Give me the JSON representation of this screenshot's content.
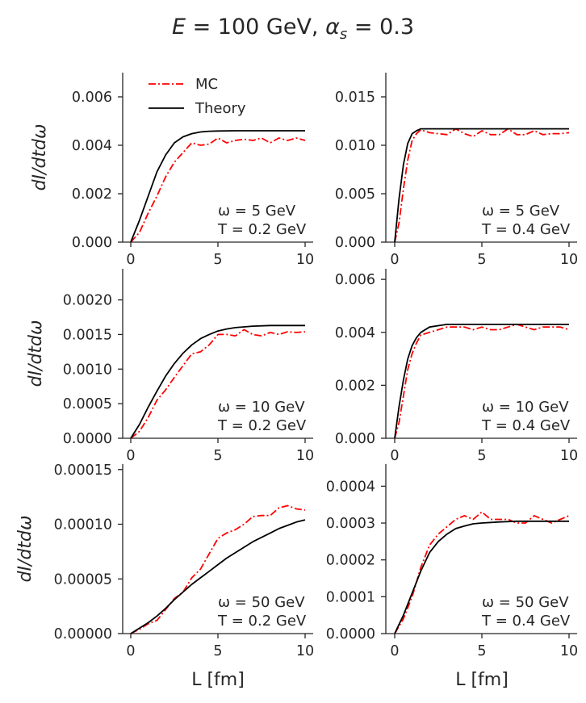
{
  "figure": {
    "title_prefix": "E",
    "title_mid": " = 100 GeV, ",
    "title_alpha": "α",
    "title_sub": "s",
    "title_suffix": " = 0.3"
  },
  "legend": {
    "mc": "MC",
    "theory": "Theory"
  },
  "colors": {
    "mc": "#ff0000",
    "theory": "#000000"
  },
  "chart_data": [
    {
      "type": "line",
      "ylabel": "dI/dtdω",
      "xlabel": "",
      "annotation": [
        "ω = 5 GeV",
        "T = 0.2 GeV"
      ],
      "xlim": [
        0,
        10
      ],
      "ylim": [
        0,
        0.007
      ],
      "xticks": [
        "0",
        "5",
        "10"
      ],
      "yticks": [
        "0.000",
        "0.002",
        "0.004",
        "0.006"
      ],
      "ytick_values": [
        0,
        0.002,
        0.004,
        0.006
      ],
      "series": [
        {
          "name": "MC",
          "style": "dashdot",
          "x": [
            0,
            0.5,
            1,
            1.5,
            2,
            2.5,
            3,
            3.5,
            4,
            4.5,
            5,
            5.5,
            6,
            6.5,
            7,
            7.5,
            8,
            8.5,
            9,
            9.5,
            10
          ],
          "y": [
            0,
            0.0004,
            0.0012,
            0.0019,
            0.0027,
            0.0033,
            0.0037,
            0.0041,
            0.004,
            0.00405,
            0.0043,
            0.0041,
            0.0042,
            0.00425,
            0.0042,
            0.0043,
            0.0041,
            0.0043,
            0.0042,
            0.0043,
            0.0042
          ]
        },
        {
          "name": "Theory",
          "style": "solid",
          "x": [
            0,
            0.5,
            1,
            1.5,
            2,
            2.5,
            3,
            3.5,
            4,
            4.5,
            5,
            6,
            7,
            8,
            9,
            10
          ],
          "y": [
            0,
            0.0009,
            0.0019,
            0.0029,
            0.0036,
            0.0041,
            0.00435,
            0.00448,
            0.00455,
            0.00458,
            0.00459,
            0.0046,
            0.0046,
            0.0046,
            0.0046,
            0.0046
          ]
        }
      ]
    },
    {
      "type": "line",
      "ylabel": "",
      "xlabel": "",
      "annotation": [
        "ω = 5 GeV",
        "T = 0.4 GeV"
      ],
      "xlim": [
        0,
        10
      ],
      "ylim": [
        0,
        0.0175
      ],
      "xticks": [
        "0",
        "5",
        "10"
      ],
      "yticks": [
        "0.000",
        "0.005",
        "0.010",
        "0.015"
      ],
      "ytick_values": [
        0,
        0.005,
        0.01,
        0.015
      ],
      "series": [
        {
          "name": "MC",
          "style": "dashdot",
          "x": [
            0,
            0.25,
            0.5,
            0.75,
            1,
            1.25,
            1.5,
            2,
            2.5,
            3,
            3.5,
            4,
            4.5,
            5,
            5.5,
            6,
            6.5,
            7,
            7.5,
            8,
            8.5,
            9,
            9.5,
            10
          ],
          "y": [
            0,
            0.002,
            0.0055,
            0.0085,
            0.0105,
            0.0112,
            0.0116,
            0.0113,
            0.0112,
            0.0111,
            0.0117,
            0.0112,
            0.0109,
            0.0115,
            0.0111,
            0.0111,
            0.0117,
            0.0111,
            0.0111,
            0.0115,
            0.0111,
            0.0112,
            0.0112,
            0.0113
          ]
        },
        {
          "name": "Theory",
          "style": "solid",
          "x": [
            0,
            0.25,
            0.5,
            0.75,
            1,
            1.25,
            1.5,
            2,
            2.5,
            3,
            4,
            5,
            6,
            7,
            8,
            9,
            10
          ],
          "y": [
            0,
            0.0045,
            0.008,
            0.0102,
            0.0112,
            0.0115,
            0.0117,
            0.0117,
            0.0117,
            0.0117,
            0.0117,
            0.0117,
            0.0117,
            0.0117,
            0.0117,
            0.0117,
            0.0117
          ]
        }
      ]
    },
    {
      "type": "line",
      "ylabel": "dI/dtdω",
      "xlabel": "",
      "annotation": [
        "ω = 10 GeV",
        "T = 0.2 GeV"
      ],
      "xlim": [
        0,
        10
      ],
      "ylim": [
        0,
        0.00245
      ],
      "xticks": [
        "0",
        "5",
        "10"
      ],
      "yticks": [
        "0.0000",
        "0.0005",
        "0.0010",
        "0.0015",
        "0.0020"
      ],
      "ytick_values": [
        0,
        0.0005,
        0.001,
        0.0015,
        0.002
      ],
      "series": [
        {
          "name": "MC",
          "style": "dashdot",
          "x": [
            0,
            0.5,
            1,
            1.5,
            2,
            2.5,
            3,
            3.5,
            4,
            4.5,
            5,
            5.5,
            6,
            6.5,
            7,
            7.5,
            8,
            8.5,
            9,
            9.5,
            10
          ],
          "y": [
            0,
            0.0001,
            0.0003,
            0.00055,
            0.0007,
            0.00088,
            0.00105,
            0.00122,
            0.00125,
            0.00135,
            0.0015,
            0.0015,
            0.00148,
            0.00157,
            0.0015,
            0.00148,
            0.00153,
            0.0015,
            0.00154,
            0.00153,
            0.00154
          ]
        },
        {
          "name": "Theory",
          "style": "solid",
          "x": [
            0,
            0.5,
            1,
            1.5,
            2,
            2.5,
            3,
            3.5,
            4,
            4.5,
            5,
            5.5,
            6,
            7,
            8,
            9,
            10
          ],
          "y": [
            0,
            0.0002,
            0.00045,
            0.00068,
            0.0009,
            0.00108,
            0.00123,
            0.00135,
            0.00144,
            0.0015,
            0.00155,
            0.00158,
            0.0016,
            0.00162,
            0.00163,
            0.00163,
            0.00163
          ]
        }
      ]
    },
    {
      "type": "line",
      "ylabel": "",
      "xlabel": "",
      "annotation": [
        "ω = 10 GeV",
        "T = 0.4 GeV"
      ],
      "xlim": [
        0,
        10
      ],
      "ylim": [
        0,
        0.0064
      ],
      "xticks": [
        "0",
        "5",
        "10"
      ],
      "yticks": [
        "0.000",
        "0.002",
        "0.004",
        "0.006"
      ],
      "ytick_values": [
        0,
        0.002,
        0.004,
        0.006
      ],
      "series": [
        {
          "name": "MC",
          "style": "dashdot",
          "x": [
            0,
            0.25,
            0.5,
            0.75,
            1,
            1.25,
            1.5,
            2,
            2.5,
            3,
            3.5,
            4,
            4.5,
            5,
            5.5,
            6,
            6.5,
            7,
            7.5,
            8,
            8.5,
            9,
            9.5,
            10
          ],
          "y": [
            0,
            0.0006,
            0.0016,
            0.0026,
            0.0032,
            0.0036,
            0.0039,
            0.004,
            0.0041,
            0.0042,
            0.0042,
            0.0042,
            0.0041,
            0.0042,
            0.0041,
            0.0041,
            0.0042,
            0.0043,
            0.0042,
            0.0041,
            0.0042,
            0.0042,
            0.0042,
            0.0041
          ]
        },
        {
          "name": "Theory",
          "style": "solid",
          "x": [
            0,
            0.25,
            0.5,
            0.75,
            1,
            1.25,
            1.5,
            2,
            2.5,
            3,
            4,
            5,
            6,
            7,
            8,
            9,
            10
          ],
          "y": [
            0,
            0.0012,
            0.0022,
            0.003,
            0.0035,
            0.0038,
            0.004,
            0.0042,
            0.00425,
            0.0043,
            0.0043,
            0.0043,
            0.0043,
            0.0043,
            0.0043,
            0.0043,
            0.0043
          ]
        }
      ]
    },
    {
      "type": "line",
      "ylabel": "dI/dtdω",
      "xlabel": "L [fm]",
      "annotation": [
        "ω = 50 GeV",
        "T = 0.2 GeV"
      ],
      "xlim": [
        0,
        10
      ],
      "ylim": [
        0,
        0.000155
      ],
      "xticks": [
        "0",
        "5",
        "10"
      ],
      "yticks": [
        "0.00000",
        "0.00005",
        "0.00010",
        "0.00015"
      ],
      "ytick_values": [
        0,
        5e-05,
        0.0001,
        0.00015
      ],
      "series": [
        {
          "name": "MC",
          "style": "dashdot",
          "x": [
            0,
            0.5,
            1,
            1.5,
            2,
            2.5,
            3,
            3.5,
            4,
            4.5,
            5,
            5.5,
            6,
            6.5,
            7,
            7.5,
            8,
            8.5,
            9,
            9.5,
            10
          ],
          "y": [
            0,
            4e-06,
            9e-06,
            1.2e-05,
            2.2e-05,
            3.2e-05,
            3.8e-05,
            5.1e-05,
            5.9e-05,
            7.3e-05,
            8.7e-05,
            9.2e-05,
            9.5e-05,
            0.0001,
            0.000107,
            0.000108,
            0.000108,
            0.000115,
            0.000117,
            0.000114,
            0.000113
          ]
        },
        {
          "name": "Theory",
          "style": "solid",
          "x": [
            0,
            0.5,
            1,
            1.5,
            2,
            2.5,
            3,
            3.5,
            4,
            4.5,
            5,
            5.5,
            6,
            6.5,
            7,
            7.5,
            8,
            8.5,
            9,
            9.5,
            10
          ],
          "y": [
            0,
            5e-06,
            1e-05,
            1.6e-05,
            2.3e-05,
            3.1e-05,
            3.8e-05,
            4.5e-05,
            5.1e-05,
            5.7e-05,
            6.3e-05,
            6.9e-05,
            7.4e-05,
            7.9e-05,
            8.4e-05,
            8.8e-05,
            9.2e-05,
            9.6e-05,
            9.9e-05,
            0.000102,
            0.000104
          ]
        }
      ]
    },
    {
      "type": "line",
      "ylabel": "",
      "xlabel": "L [fm]",
      "annotation": [
        "ω = 50 GeV",
        "T = 0.4 GeV"
      ],
      "xlim": [
        0,
        10
      ],
      "ylim": [
        0,
        0.00046
      ],
      "xticks": [
        "0",
        "5",
        "10"
      ],
      "yticks": [
        "0.0000",
        "0.0001",
        "0.0002",
        "0.0003",
        "0.0004"
      ],
      "ytick_values": [
        0,
        0.0001,
        0.0002,
        0.0003,
        0.0004
      ],
      "series": [
        {
          "name": "MC",
          "style": "dashdot",
          "x": [
            0,
            0.5,
            1,
            1.5,
            2,
            2.5,
            3,
            3.5,
            4,
            4.5,
            5,
            5.5,
            6,
            6.5,
            7,
            7.5,
            8,
            8.5,
            9,
            9.5,
            10
          ],
          "y": [
            0,
            4e-05,
            0.0001,
            0.00018,
            0.00024,
            0.00027,
            0.00029,
            0.00031,
            0.00032,
            0.00031,
            0.00033,
            0.00031,
            0.00031,
            0.00031,
            0.0003,
            0.0003,
            0.00032,
            0.00031,
            0.0003,
            0.00031,
            0.00032
          ]
        },
        {
          "name": "Theory",
          "style": "solid",
          "x": [
            0,
            0.5,
            1,
            1.5,
            2,
            2.5,
            3,
            3.5,
            4,
            4.5,
            5,
            6,
            7,
            8,
            9,
            10
          ],
          "y": [
            0,
            5e-05,
            0.00011,
            0.00017,
            0.00022,
            0.00025,
            0.00027,
            0.000285,
            0.000292,
            0.000298,
            0.0003,
            0.000303,
            0.000305,
            0.000305,
            0.000305,
            0.000305
          ]
        }
      ]
    }
  ]
}
